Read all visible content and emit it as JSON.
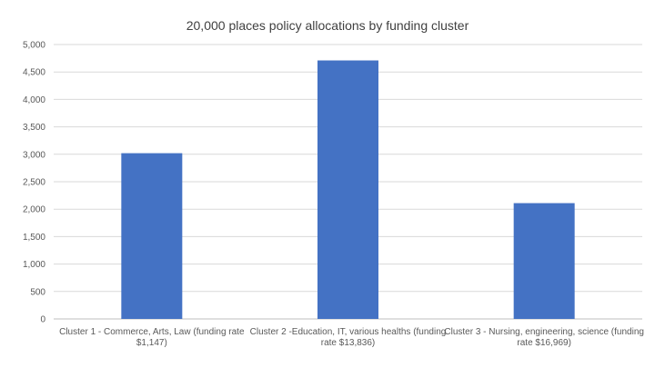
{
  "chart_data": {
    "type": "bar",
    "title": "20,000 places policy allocations by funding cluster",
    "xlabel": "",
    "ylabel": "",
    "categories": [
      [
        "Cluster 1 - Commerce, Arts, Law (funding rate",
        "$1,147)"
      ],
      [
        "Cluster 2 -Education, IT, various healths (funding",
        "rate $13,836)"
      ],
      [
        "Cluster 3 - Nursing, engineering, science (funding",
        "rate $16,969)"
      ]
    ],
    "values": [
      3020,
      4710,
      2110
    ],
    "ylim": [
      0,
      5000
    ],
    "yticks": [
      "0",
      "500",
      "1,000",
      "1,500",
      "2,000",
      "2,500",
      "3,000",
      "3,500",
      "4,000",
      "4,500",
      "5,000"
    ],
    "grid": true,
    "legend": "none",
    "bar_color": "#4472C4",
    "grid_color": "#d9d9d9"
  }
}
